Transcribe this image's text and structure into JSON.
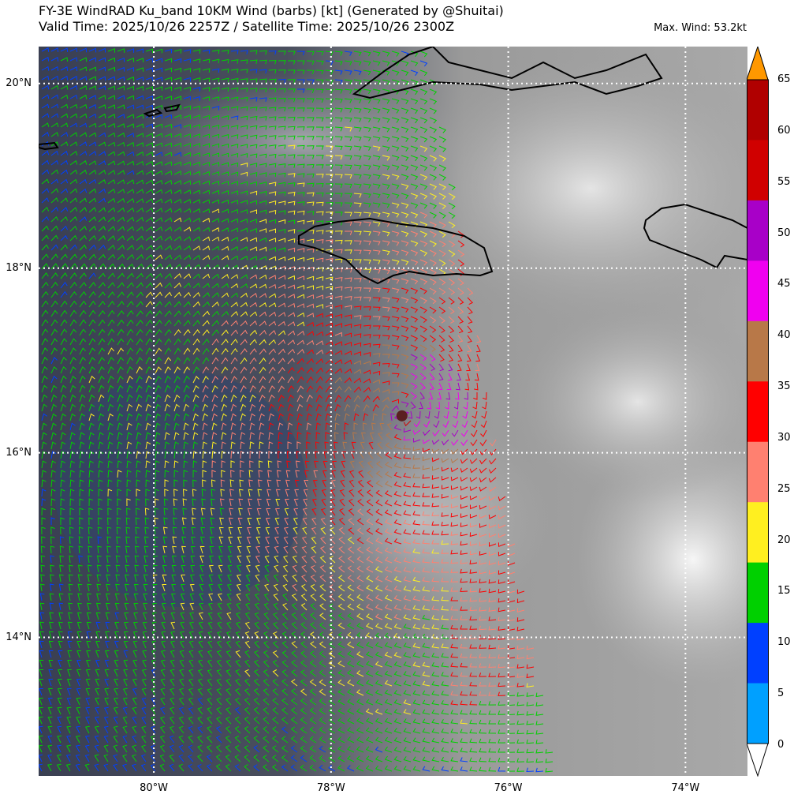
{
  "header": {
    "title_line1": "FY-3E WindRAD Ku_band 10KM Wind (barbs) [kt] (Generated by @Shuitai)",
    "title_line2": "Valid Time: 2025/10/26 2257Z / Satellite Time: 2025/10/26 2300Z",
    "max_wind": "Max. Wind: 53.2kt"
  },
  "map": {
    "lon_range": [
      -81.3,
      -73.3
    ],
    "lat_range": [
      12.5,
      20.4
    ],
    "storm_center": {
      "lon": -77.2,
      "lat": 16.4
    },
    "swath_east_edge": [
      [
        -76.85,
        20.1
      ],
      [
        -75.4,
        12.5
      ]
    ],
    "latitude_labels": [
      {
        "value": 20,
        "text": "20°N"
      },
      {
        "value": 18,
        "text": "18°N"
      },
      {
        "value": 16,
        "text": "16°N"
      },
      {
        "value": 14,
        "text": "14°N"
      }
    ],
    "longitude_labels": [
      {
        "value": -80,
        "text": "80°W"
      },
      {
        "value": -78,
        "text": "78°W"
      },
      {
        "value": -76,
        "text": "76°W"
      },
      {
        "value": -74,
        "text": "74°W"
      }
    ]
  },
  "colorbar": {
    "ticks": [
      "0",
      "5",
      "10",
      "15",
      "20",
      "25",
      "30",
      "35",
      "40",
      "45",
      "50",
      "55",
      "60",
      "65"
    ],
    "colors": [
      "#ffffff",
      "#00a0ff",
      "#0040ff",
      "#00d000",
      "#ffef20",
      "#ff8070",
      "#ff0000",
      "#b87848",
      "#f000f0",
      "#a800c8",
      "#d00000",
      "#b00000",
      "#ff9800"
    ]
  }
}
